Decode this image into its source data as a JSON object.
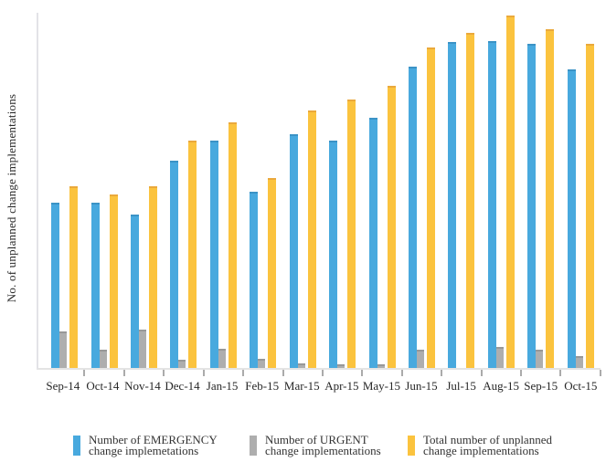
{
  "chart_data": {
    "type": "bar",
    "title": "",
    "xlabel": "",
    "ylabel": "No. of unplanned change implementations",
    "categories": [
      "Sep-14",
      "Oct-14",
      "Nov-14",
      "Dec-14",
      "Jan-15",
      "Feb-15",
      "Mar-15",
      "Apr-15",
      "May-15",
      "Jun-15",
      "Jul-15",
      "Aug-15",
      "Sep-15",
      "Oct-15"
    ],
    "series": [
      {
        "key": "emergency",
        "name": "Number of EMERGENCY change implemetations",
        "color": "#48a9de",
        "cap_color": "#3b93c6",
        "values": [
          46.9,
          46.9,
          43.5,
          58.8,
          64.6,
          50.0,
          66.4,
          64.7,
          71.1,
          85.7,
          92.7,
          92.8,
          92.1,
          84.7
        ]
      },
      {
        "key": "urgent",
        "name": "Number of URGENT change implementations",
        "color": "#aeaeae",
        "cap_color": "#989898",
        "values": [
          10.4,
          5.3,
          11.0,
          2.3,
          5.5,
          2.7,
          1.2,
          1.1,
          1.1,
          5.3,
          0,
          5.9,
          5.2,
          3.5
        ]
      },
      {
        "key": "total",
        "name": "Total number of unplanned change implementations",
        "color": "#fbc33e",
        "cap_color": "#eaa93c",
        "values": [
          51.6,
          49.2,
          51.6,
          64.6,
          69.8,
          53.9,
          73.2,
          76.3,
          80.2,
          91.1,
          95.1,
          100.0,
          96.2,
          92.1
        ]
      }
    ],
    "ylim": [
      0,
      101
    ],
    "y_tick_labels": "none",
    "gridlines": false,
    "legend_position": "bottom",
    "values_scale": "relative units; y-axis has no numeric labels, max bar (Aug-15 total) normalized to 100"
  },
  "legend": {
    "items": [
      {
        "line1": "Number of EMERGENCY",
        "line2": "change implemetations"
      },
      {
        "line1": "Number of URGENT",
        "line2": "change implementations"
      },
      {
        "line1": "Total number of unplanned",
        "line2": "change implementations"
      }
    ]
  },
  "colors": {
    "axis_line": "#e3e3e7",
    "tick_mark": "#ababab",
    "text": "#2b2b2b",
    "background": "#ffffff"
  }
}
